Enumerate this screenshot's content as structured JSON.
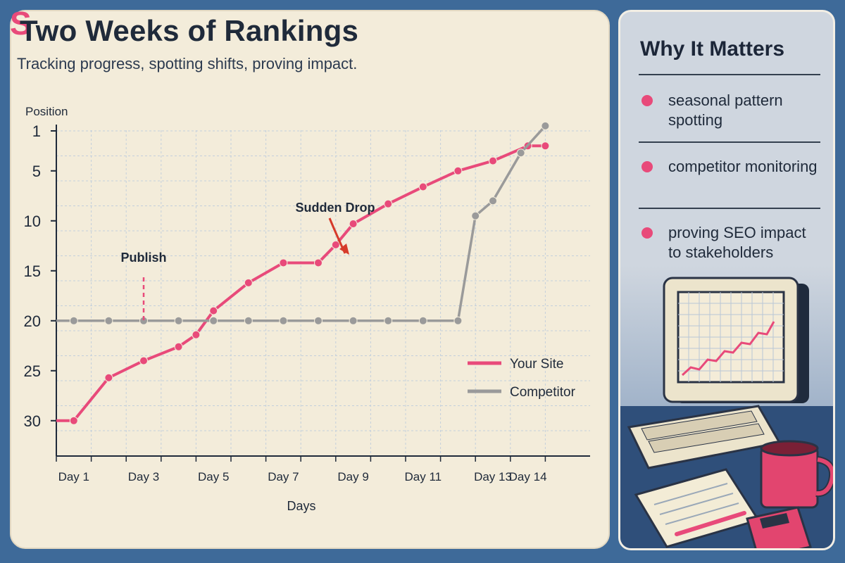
{
  "chart_data": {
    "type": "line",
    "title": "Two Weeks of Rankings",
    "subtitle": "Tracking progress, spotting shifts, proving impact.",
    "xlabel": "Days",
    "ylabel": "Position",
    "y_reversed": true,
    "ylim": [
      1,
      30
    ],
    "y_ticks": [
      1,
      5,
      10,
      15,
      20,
      25,
      30
    ],
    "x_tick_labels": [
      "Day 1",
      "Day 3",
      "Day 5",
      "Day 7",
      "Day 9",
      "Day 11",
      "Day 13",
      "Day 14"
    ],
    "x_tick_positions": [
      1,
      3,
      5,
      7,
      9,
      11,
      13,
      14
    ],
    "grid": true,
    "legend_position": "bottom-right",
    "series": [
      {
        "name": "Your Site",
        "color": "#e84a7a",
        "x": [
          0.5,
          1,
          2,
          3,
          4,
          4.5,
          5,
          6,
          7,
          7.5,
          8,
          8.5,
          9,
          10,
          11,
          12,
          13,
          14,
          14.5
        ],
        "y": [
          30,
          30,
          25.7,
          24,
          22.6,
          21.4,
          19,
          16.2,
          14.2,
          14.2,
          14.2,
          12.4,
          10.3,
          8.3,
          6.6,
          5,
          4,
          2.5,
          2.5
        ],
        "markers": [
          1,
          2,
          3,
          4,
          4.5,
          5,
          6,
          7,
          8,
          8.5,
          9,
          10,
          11,
          12,
          13,
          14,
          14.5
        ]
      },
      {
        "name": "Competitor",
        "color": "#9a9a9a",
        "x": [
          0.5,
          1,
          2,
          3,
          4,
          5,
          6,
          7,
          8,
          9,
          10,
          11,
          12,
          12.5,
          13,
          13.8,
          14.5
        ],
        "y": [
          20,
          20,
          20,
          20,
          20,
          20,
          20,
          20,
          20,
          20,
          20,
          20,
          20,
          9.5,
          8,
          3.2,
          0.5
        ]
      }
    ],
    "annotations": [
      {
        "text": "Publish",
        "x": 3,
        "y": 20
      },
      {
        "text": "Sudden Drop",
        "x": 8.5,
        "y": 14.2
      }
    ]
  },
  "sidebar": {
    "title": "Why It Matters",
    "items": [
      {
        "text": "seasonal pattern spotting"
      },
      {
        "text": "competitor monitoring"
      },
      {
        "text": "proving SEO impact to stakeholders"
      }
    ]
  },
  "logo": {
    "letter": "S"
  }
}
